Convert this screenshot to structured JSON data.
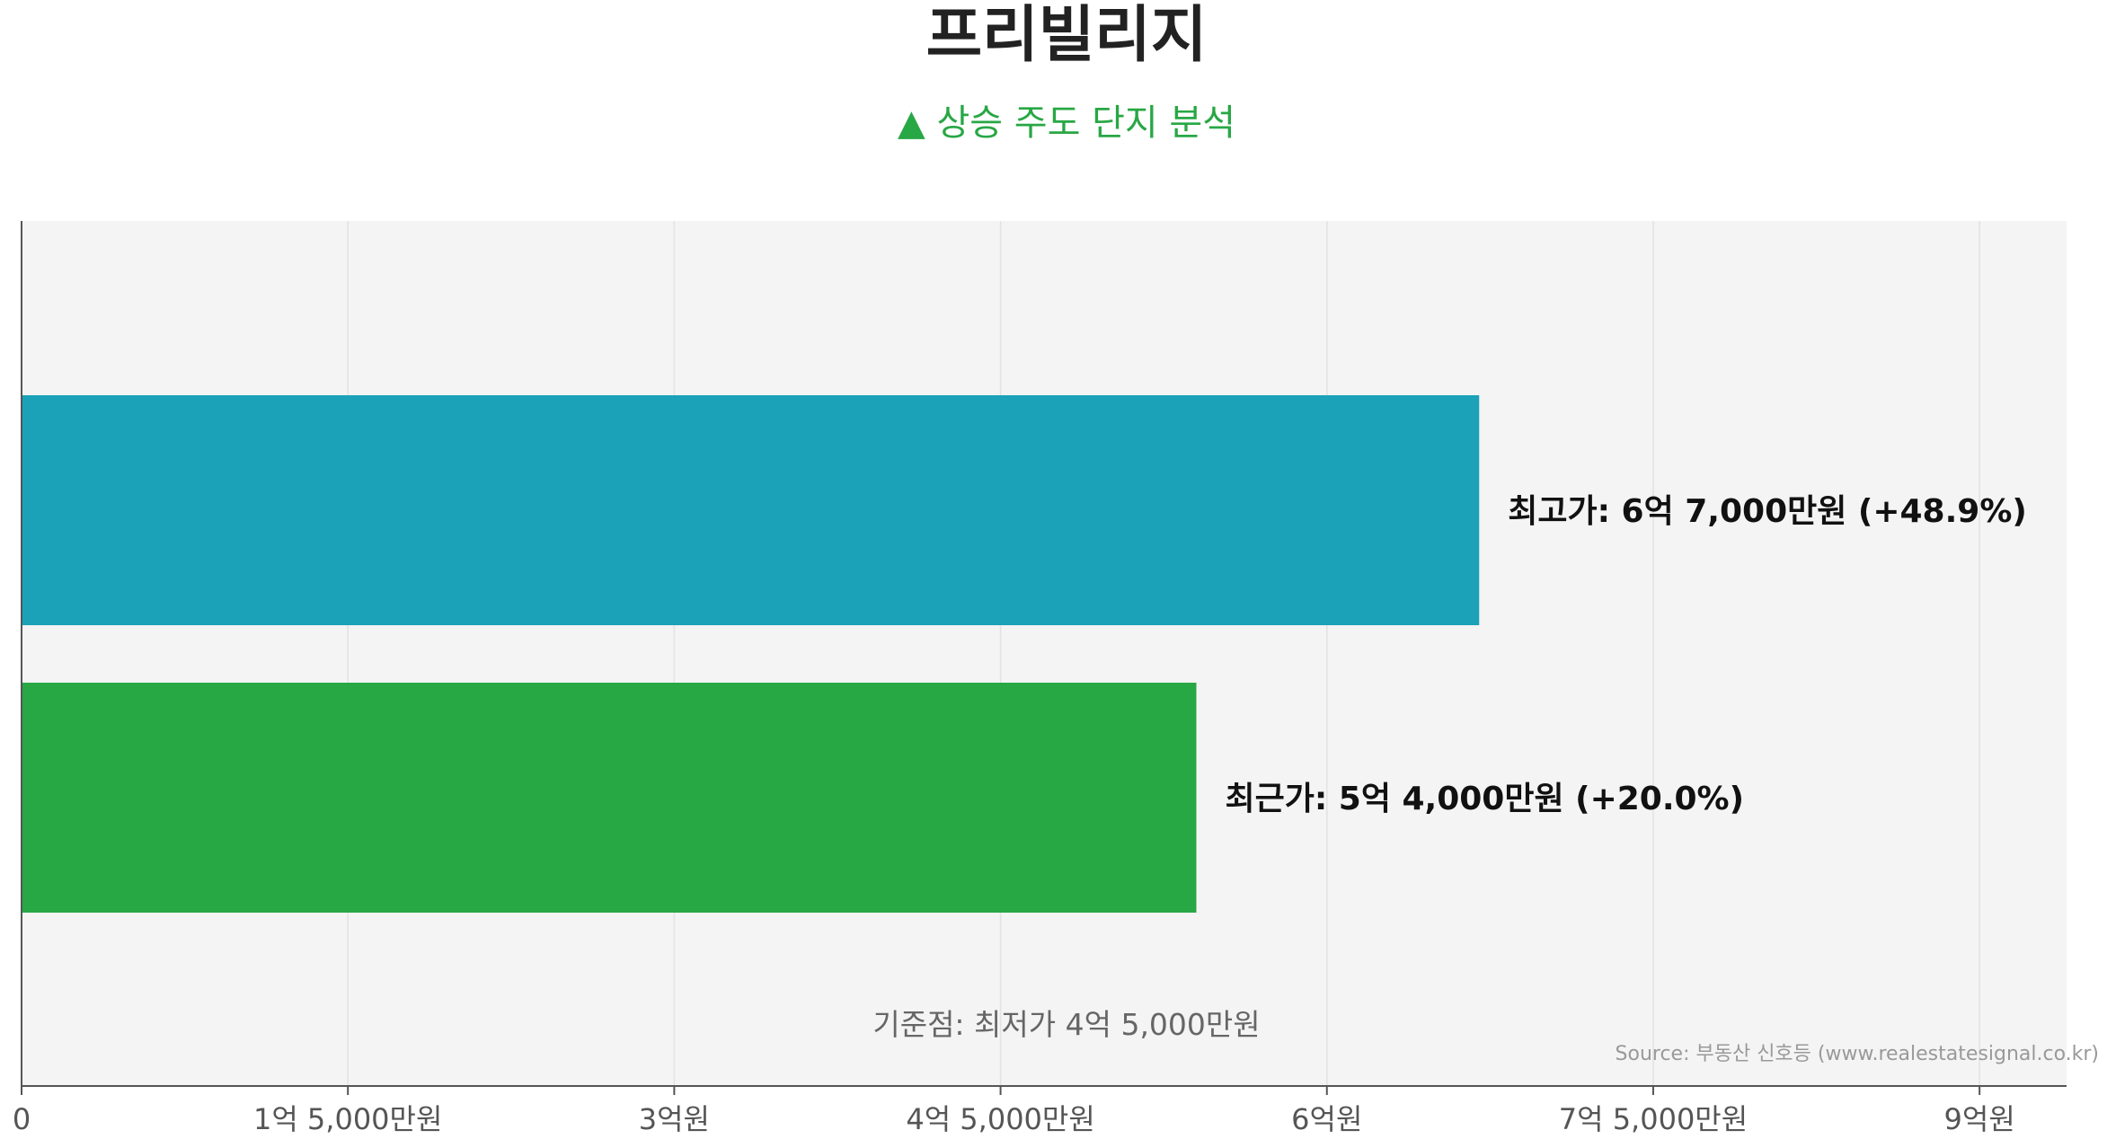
{
  "chart_data": {
    "type": "bar",
    "orientation": "horizontal",
    "title": "프리빌리지",
    "subtitle": "▲ 상승 주도 단지 분석",
    "categories": [
      "최고가",
      "최근가"
    ],
    "values": [
      670000000,
      540000000
    ],
    "value_labels": [
      "최고가: 6억 7,000만원 (+48.9%)",
      "최근가: 5억 4,000만원 (+20.0%)"
    ],
    "bar_colors": [
      "#1ba1b8",
      "#28a745"
    ],
    "xlim": [
      0,
      940000000
    ],
    "xticks": [
      0,
      150000000,
      300000000,
      450000000,
      600000000,
      750000000,
      900000000
    ],
    "xtick_labels": [
      "0",
      "1억 5,000만원",
      "3억원",
      "4억 5,000만원",
      "6억원",
      "7억 5,000만원",
      "9억원"
    ],
    "annotation": "기준점: 최저가 4억 5,000만원",
    "source": "Source: 부동산 신호등 (www.realestatesignal.co.kr)",
    "grid": true,
    "plot_background": "#f4f4f4"
  }
}
